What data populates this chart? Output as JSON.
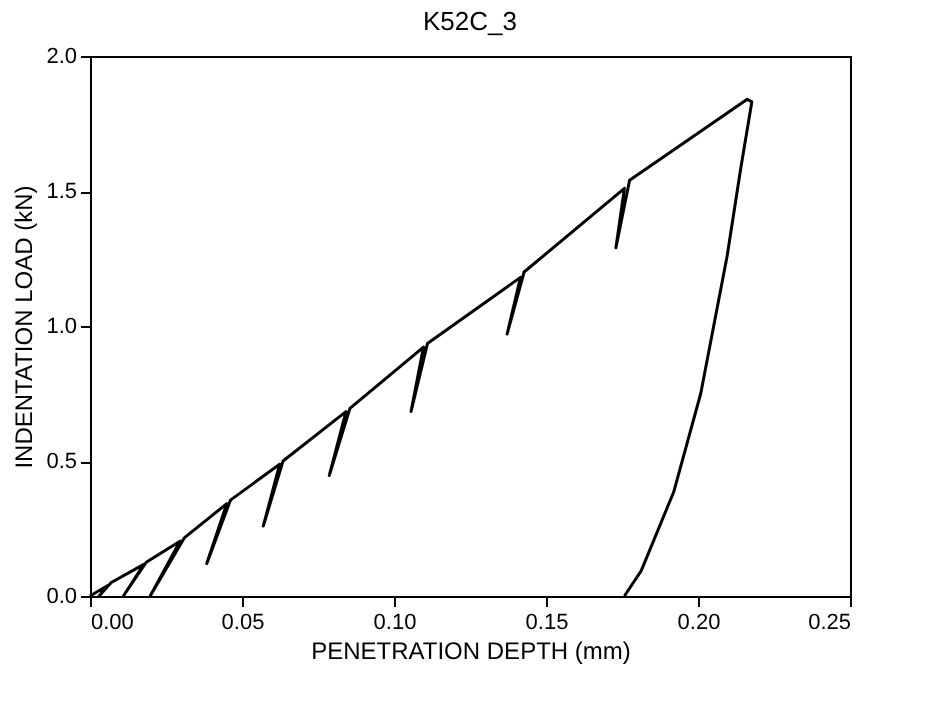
{
  "chart_data": {
    "type": "line",
    "title": "K52C_3",
    "xlabel": "PENETRATION DEPTH (mm)",
    "ylabel": "INDENTATION LOAD (kN)",
    "series": [
      {
        "color": "#000000",
        "x": [
          0,
          0.006,
          0.003,
          0.007,
          0.0177,
          0.011,
          0.0185,
          0.0296,
          0.0198,
          0.031,
          0.045,
          0.0384,
          0.0462,
          0.0624,
          0.057,
          0.0635,
          0.0842,
          0.0787,
          0.0855,
          0.1097,
          0.1056,
          0.111,
          0.1416,
          0.1372,
          0.1428,
          0.1758,
          0.173,
          0.1775,
          0.2162,
          0.2177,
          0.214,
          0.2096,
          0.2009,
          0.192,
          0.1813,
          0.1758
        ],
        "values": [
          0,
          0.04,
          0.0,
          0.05,
          0.117,
          0.0,
          0.125,
          0.203,
          0.0,
          0.215,
          0.342,
          0.12,
          0.355,
          0.488,
          0.259,
          0.5,
          0.683,
          0.446,
          0.695,
          0.922,
          0.683,
          0.935,
          1.18,
          0.97,
          1.2,
          1.51,
          1.29,
          1.54,
          1.84,
          1.83,
          1.58,
          1.26,
          0.75,
          0.385,
          0.093,
          0.0
        ]
      }
    ],
    "xlim": [
      0,
      0.25
    ],
    "xticks": [
      {
        "value": 0,
        "label": "0.00"
      },
      {
        "value": 0.05,
        "label": "0.05"
      },
      {
        "value": 0.1,
        "label": "0.10"
      },
      {
        "value": 0.15,
        "label": "0.15"
      },
      {
        "value": 0.2,
        "label": "0.20"
      },
      {
        "value": 0.25,
        "label": "0.25"
      }
    ],
    "ylim": [
      0,
      2.0
    ],
    "yticks": [
      {
        "value": 0,
        "label": "0.0"
      },
      {
        "value": 0.5,
        "label": "0.5"
      },
      {
        "value": 1.0,
        "label": "1.0"
      },
      {
        "value": 1.5,
        "label": "1.5"
      },
      {
        "value": 2.0,
        "label": "2.0"
      }
    ],
    "grid": false,
    "marker": "none",
    "line_style": "solid"
  }
}
